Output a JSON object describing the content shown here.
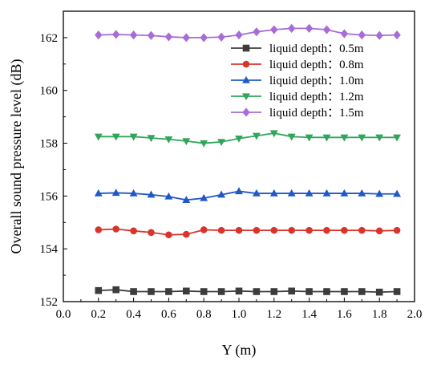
{
  "chart_data": {
    "type": "line",
    "xlabel": "Y (m)",
    "ylabel": "Overall sound pressure level (dB)",
    "xlim": [
      0.0,
      2.0
    ],
    "ylim": [
      152,
      163
    ],
    "x_ticks": [
      "0.0",
      "0.2",
      "0.4",
      "0.6",
      "0.8",
      "1.0",
      "1.2",
      "1.4",
      "1.6",
      "1.8",
      "2.0"
    ],
    "y_ticks": [
      "152",
      "154",
      "156",
      "158",
      "160",
      "162"
    ],
    "grid": false,
    "legend_position": "top-right",
    "x": [
      0.2,
      0.3,
      0.4,
      0.5,
      0.6,
      0.7,
      0.8,
      0.9,
      1.0,
      1.1,
      1.2,
      1.3,
      1.4,
      1.5,
      1.6,
      1.7,
      1.8,
      1.9
    ],
    "series": [
      {
        "name": "liquid depth：0.5m",
        "color": "#3c3c3c",
        "marker": "square",
        "values": [
          152.42,
          152.45,
          152.38,
          152.38,
          152.38,
          152.4,
          152.38,
          152.38,
          152.4,
          152.38,
          152.38,
          152.4,
          152.38,
          152.38,
          152.38,
          152.38,
          152.36,
          152.38
        ]
      },
      {
        "name": "liquid depth：0.8m",
        "color": "#d8342c",
        "marker": "circle",
        "values": [
          154.72,
          154.75,
          154.68,
          154.62,
          154.53,
          154.55,
          154.72,
          154.7,
          154.7,
          154.7,
          154.7,
          154.7,
          154.7,
          154.7,
          154.7,
          154.7,
          154.68,
          154.7
        ]
      },
      {
        "name": "liquid depth：1.0m",
        "color": "#2058c8",
        "marker": "triangle-up",
        "values": [
          156.1,
          156.12,
          156.1,
          156.05,
          155.98,
          155.85,
          155.92,
          156.05,
          156.18,
          156.1,
          156.1,
          156.1,
          156.1,
          156.1,
          156.1,
          156.1,
          156.08,
          156.08
        ]
      },
      {
        "name": "liquid depth：1.2m",
        "color": "#2fa65a",
        "marker": "triangle-down",
        "values": [
          158.25,
          158.25,
          158.25,
          158.2,
          158.15,
          158.08,
          158.0,
          158.05,
          158.18,
          158.28,
          158.38,
          158.25,
          158.22,
          158.22,
          158.22,
          158.22,
          158.22,
          158.22
        ]
      },
      {
        "name": "liquid depth：1.5m",
        "color": "#a86cd6",
        "marker": "diamond",
        "values": [
          162.1,
          162.12,
          162.1,
          162.08,
          162.03,
          162.0,
          162.0,
          162.02,
          162.1,
          162.22,
          162.3,
          162.35,
          162.35,
          162.3,
          162.15,
          162.1,
          162.08,
          162.1
        ]
      }
    ]
  }
}
